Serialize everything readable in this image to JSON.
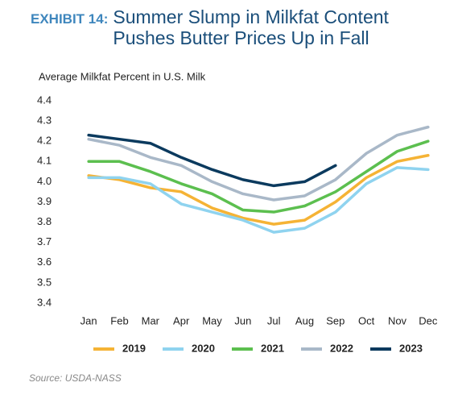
{
  "chart_data": {
    "type": "line",
    "exhibit": "EXHIBIT 14:",
    "title": [
      "Summer Slump in Milkfat Content",
      "Pushes Butter Prices Up in Fall"
    ],
    "y_label": "Average Milkfat Percent in U.S. Milk",
    "source": "Source: USDA-NASS",
    "categories": [
      "Jan",
      "Feb",
      "Mar",
      "Apr",
      "May",
      "Jun",
      "Jul",
      "Aug",
      "Sep",
      "Oct",
      "Nov",
      "Dec"
    ],
    "series": [
      {
        "name": "2019",
        "color": "#f5b335",
        "values": [
          4.03,
          4.01,
          3.97,
          3.95,
          3.87,
          3.82,
          3.79,
          3.81,
          3.9,
          4.02,
          4.1,
          4.13
        ]
      },
      {
        "name": "2020",
        "color": "#8fd3ef",
        "values": [
          4.02,
          4.02,
          3.99,
          3.89,
          3.85,
          3.81,
          3.75,
          3.77,
          3.85,
          3.99,
          4.07,
          4.06
        ]
      },
      {
        "name": "2021",
        "color": "#5cbf4f",
        "values": [
          4.1,
          4.1,
          4.05,
          3.99,
          3.94,
          3.86,
          3.85,
          3.88,
          3.95,
          4.05,
          4.15,
          4.2
        ]
      },
      {
        "name": "2022",
        "color": "#a9b8c8",
        "values": [
          4.21,
          4.18,
          4.12,
          4.08,
          4.0,
          3.94,
          3.91,
          3.93,
          4.01,
          4.14,
          4.23,
          4.27
        ]
      },
      {
        "name": "2023",
        "color": "#0b3a5e",
        "values": [
          4.23,
          4.21,
          4.19,
          4.12,
          4.06,
          4.01,
          3.98,
          4.0,
          4.08,
          null,
          null,
          null
        ]
      }
    ],
    "ylim": [
      3.4,
      4.4
    ],
    "yticks": [
      3.4,
      3.5,
      3.6,
      3.7,
      3.8,
      3.9,
      {
        "value": 4,
        "label": "4.0"
      },
      4.1,
      4.2,
      4.3,
      4.4
    ],
    "grid": false,
    "legend": "bottom"
  }
}
